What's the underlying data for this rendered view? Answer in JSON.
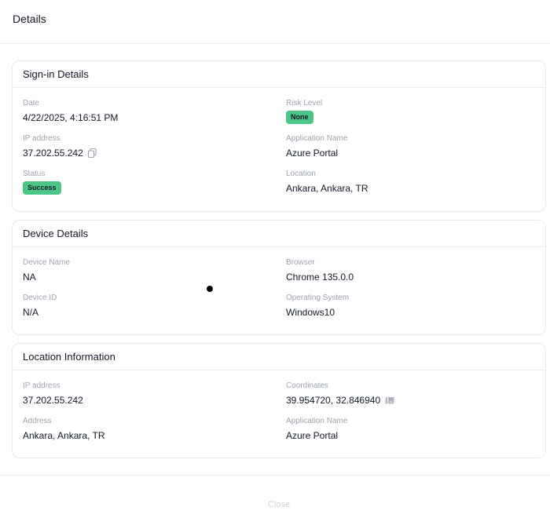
{
  "header": {
    "title": "Details"
  },
  "sign_in": {
    "title": "Sign-in Details",
    "date": {
      "label": "Date",
      "value": "4/22/2025, 4:16:51 PM"
    },
    "risk_level": {
      "label": "Risk Level",
      "value": "None"
    },
    "ip": {
      "label": "IP address",
      "value": "37.202.55.242",
      "icon": "copy-icon"
    },
    "application": {
      "label": "Application Name",
      "value": "Azure Portal"
    },
    "status": {
      "label": "Status",
      "value": "Success"
    },
    "location": {
      "label": "Location",
      "value": "Ankara, Ankara, TR"
    }
  },
  "device": {
    "title": "Device Details",
    "name": {
      "label": "Device Name",
      "value": "NA"
    },
    "browser": {
      "label": "Browser",
      "value": "Chrome 135.0.0"
    },
    "id": {
      "label": "Device ID",
      "value": "N/A"
    },
    "os": {
      "label": "Operating System",
      "value": "Windows10"
    }
  },
  "location_info": {
    "title": "Location Information",
    "ip": {
      "label": "IP address",
      "value": "37.202.55.242"
    },
    "coordinates": {
      "label": "Coordinates",
      "value": "39.954720, 32.846940",
      "icon": "map-icon"
    },
    "address": {
      "label": "Address",
      "value": "Ankara, Ankara, TR"
    },
    "application": {
      "label": "Application Name",
      "value": "Azure Portal"
    }
  },
  "footer": {
    "close_label": "Close"
  },
  "colors": {
    "badge_green": "#4ac686",
    "label_gray": "#9ca3af",
    "border": "#e8eaee"
  }
}
